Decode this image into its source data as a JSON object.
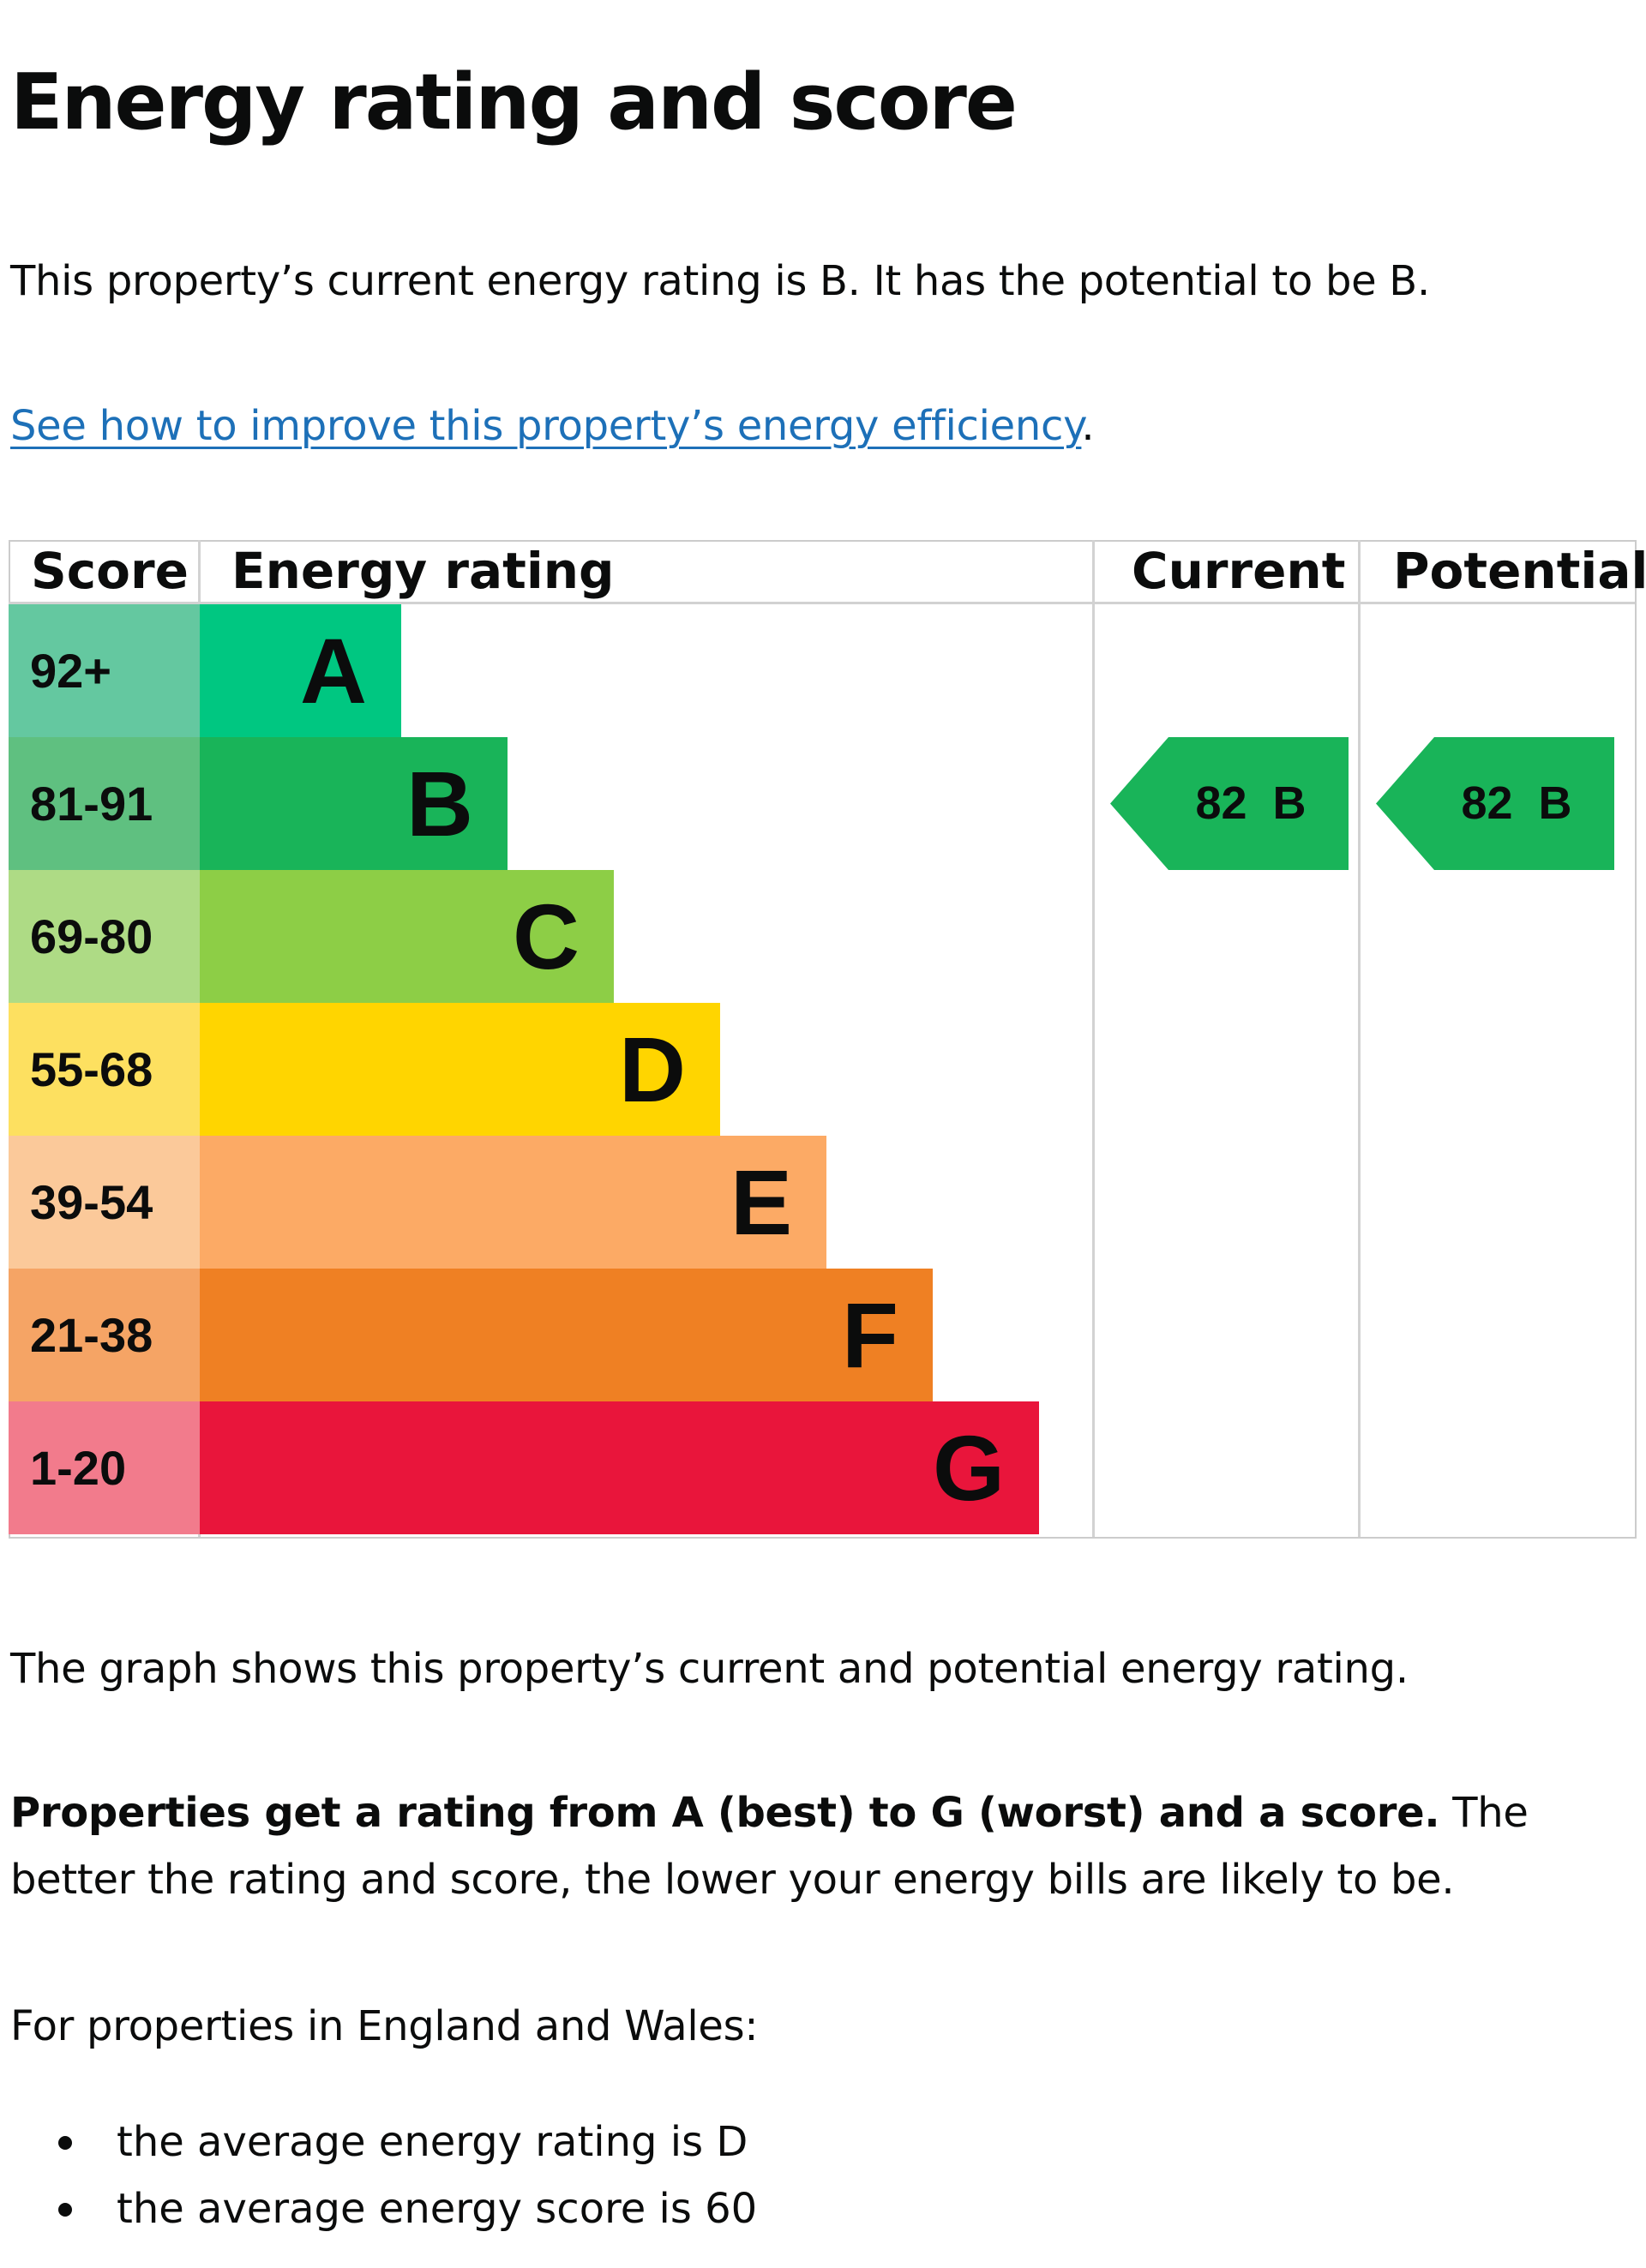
{
  "title": "Energy rating and score",
  "summary": "This property’s current energy rating is B. It has the potential to be B.",
  "improve_link": "See how to improve this property’s energy efficiency",
  "improve_suffix": ".",
  "chart_data": {
    "type": "table",
    "headers": {
      "score": "Score",
      "rating": "Energy rating",
      "current": "Current",
      "potential": "Potential"
    },
    "bands": [
      {
        "letter": "A",
        "range": "92+",
        "score_color": "#64c8a0",
        "bar_color": "#00c781"
      },
      {
        "letter": "B",
        "range": "81-91",
        "score_color": "#5fc080",
        "bar_color": "#19b459"
      },
      {
        "letter": "C",
        "range": "69-80",
        "score_color": "#aedb85",
        "bar_color": "#8dce46"
      },
      {
        "letter": "D",
        "range": "55-68",
        "score_color": "#fde060",
        "bar_color": "#ffd500"
      },
      {
        "letter": "E",
        "range": "39-54",
        "score_color": "#fbc99a",
        "bar_color": "#fcaa65"
      },
      {
        "letter": "F",
        "range": "21-38",
        "score_color": "#f5a465",
        "bar_color": "#ef8023"
      },
      {
        "letter": "G",
        "range": "1-20",
        "score_color": "#f27b8c",
        "bar_color": "#e9153b"
      }
    ],
    "current": {
      "score": 82,
      "rating": "B",
      "color": "#19b459"
    },
    "potential": {
      "score": 82,
      "rating": "B",
      "color": "#19b459"
    }
  },
  "graph_note": "The graph shows this property’s current and potential energy rating.",
  "explain_bold": "Properties get a rating from A (best) to G (worst) and a score.",
  "explain_rest": " The better the rating and score, the lower your energy bills are likely to be.",
  "england_intro": "For properties in England and Wales:",
  "averages": [
    "the average energy rating is D",
    "the average energy score is 60"
  ]
}
